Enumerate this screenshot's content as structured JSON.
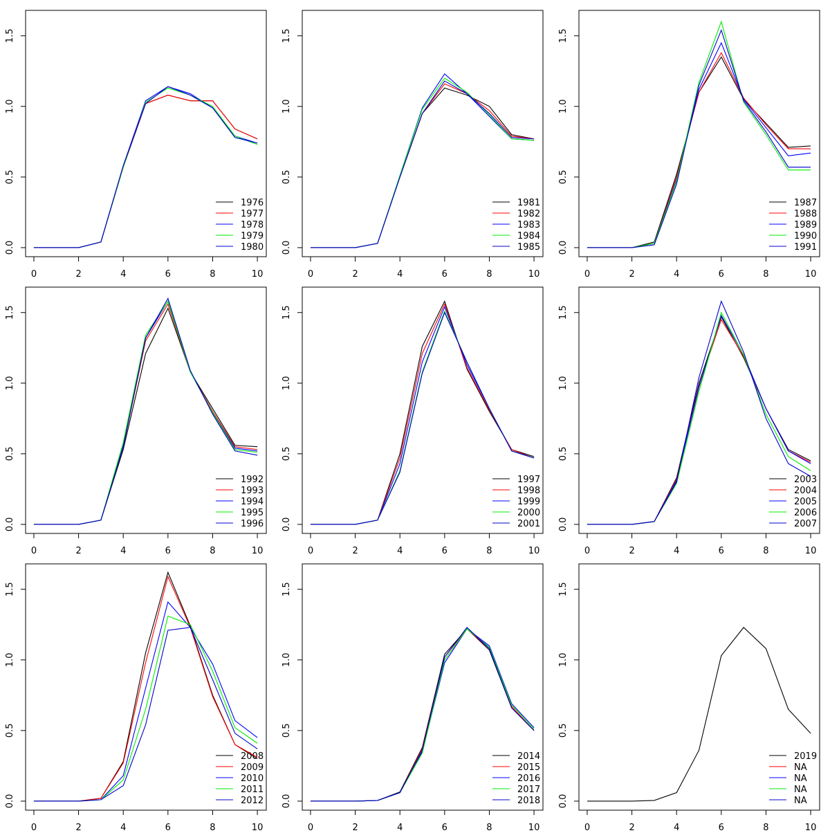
{
  "chart_data": [
    {
      "type": "line",
      "x": [
        0,
        2,
        3,
        4,
        5,
        6,
        7,
        8,
        9,
        10
      ],
      "xlim": [
        -0.37,
        10.4
      ],
      "ylim": [
        -0.064,
        1.68
      ],
      "xticks": [
        0,
        2,
        4,
        6,
        8,
        10
      ],
      "yticks": [
        {
          "value": 0,
          "label": "0.0"
        },
        0.5,
        {
          "value": 1,
          "label": "1.0"
        },
        1.5
      ],
      "series": [
        {
          "name": "1976",
          "color": "#000000",
          "values": [
            0,
            0,
            0.04,
            0.57,
            1.02,
            1.08,
            1.04,
            1.04,
            0.84,
            0.77
          ]
        },
        {
          "name": "1977",
          "color": "#ff0000",
          "values": [
            0,
            0,
            0.04,
            0.57,
            1.02,
            1.08,
            1.04,
            1.04,
            0.84,
            0.77
          ]
        },
        {
          "name": "1978",
          "color": "#0000ff",
          "values": [
            0,
            0,
            0.04,
            0.58,
            1.04,
            1.14,
            1.09,
            0.99,
            0.79,
            0.74
          ]
        },
        {
          "name": "1979",
          "color": "#00ee00",
          "values": [
            0,
            0,
            0.04,
            0.57,
            1.03,
            1.13,
            1.08,
            1.0,
            0.79,
            0.73
          ]
        },
        {
          "name": "1980",
          "color": "#0000cd",
          "values": [
            0,
            0,
            0.04,
            0.58,
            1.02,
            1.14,
            1.08,
            0.99,
            0.78,
            0.74
          ]
        }
      ]
    },
    {
      "type": "line",
      "x": [
        0,
        2,
        3,
        4,
        5,
        6,
        7,
        8,
        9,
        10
      ],
      "xlim": [
        -0.37,
        10.4
      ],
      "ylim": [
        -0.064,
        1.68
      ],
      "xticks": [
        0,
        2,
        4,
        6,
        8,
        10
      ],
      "yticks": [
        {
          "value": 0,
          "label": "0.0"
        },
        0.5,
        {
          "value": 1,
          "label": "1.0"
        },
        1.5
      ],
      "series": [
        {
          "name": "1981",
          "color": "#000000",
          "values": [
            0,
            0,
            0.03,
            0.5,
            0.95,
            1.13,
            1.08,
            1.0,
            0.8,
            0.77
          ]
        },
        {
          "name": "1982",
          "color": "#ff0000",
          "values": [
            0,
            0,
            0.03,
            0.5,
            0.95,
            1.16,
            1.09,
            0.97,
            0.79,
            0.77
          ]
        },
        {
          "name": "1983",
          "color": "#0000ff",
          "values": [
            0,
            0,
            0.03,
            0.51,
            0.99,
            1.23,
            1.09,
            0.93,
            0.77,
            0.76
          ]
        },
        {
          "name": "1984",
          "color": "#00ee00",
          "values": [
            0,
            0,
            0.03,
            0.51,
            0.98,
            1.2,
            1.1,
            0.94,
            0.77,
            0.76
          ]
        },
        {
          "name": "1985",
          "color": "#0000cd",
          "values": [
            0,
            0,
            0.03,
            0.5,
            0.95,
            1.18,
            1.09,
            0.95,
            0.78,
            0.77
          ]
        }
      ]
    },
    {
      "type": "line",
      "x": [
        0,
        2,
        3,
        4,
        5,
        6,
        7,
        8,
        9,
        10
      ],
      "xlim": [
        -0.37,
        10.4
      ],
      "ylim": [
        -0.064,
        1.68
      ],
      "xticks": [
        0,
        2,
        4,
        6,
        8,
        10
      ],
      "yticks": [
        {
          "value": 0,
          "label": "0.0"
        },
        0.5,
        {
          "value": 1,
          "label": "1.0"
        },
        1.5
      ],
      "series": [
        {
          "name": "1987",
          "color": "#000000",
          "values": [
            0,
            0,
            0.04,
            0.52,
            1.1,
            1.35,
            1.05,
            0.88,
            0.71,
            0.72
          ]
        },
        {
          "name": "1988",
          "color": "#ff0000",
          "values": [
            0,
            0,
            0.03,
            0.5,
            1.1,
            1.38,
            1.06,
            0.87,
            0.7,
            0.7
          ]
        },
        {
          "name": "1989",
          "color": "#0000ff",
          "values": [
            0,
            0,
            0.03,
            0.48,
            1.12,
            1.45,
            1.05,
            0.85,
            0.65,
            0.67
          ]
        },
        {
          "name": "1990",
          "color": "#00ee00",
          "values": [
            0,
            0,
            0.03,
            0.47,
            1.17,
            1.6,
            1.03,
            0.8,
            0.55,
            0.55
          ]
        },
        {
          "name": "1991",
          "color": "#0000cd",
          "values": [
            0,
            0,
            0.02,
            0.45,
            1.15,
            1.54,
            1.04,
            0.82,
            0.57,
            0.57
          ]
        }
      ]
    },
    {
      "type": "line",
      "x": [
        0,
        2,
        3,
        4,
        5,
        6,
        7,
        8,
        9,
        10
      ],
      "xlim": [
        -0.37,
        10.4
      ],
      "ylim": [
        -0.064,
        1.68
      ],
      "xticks": [
        0,
        2,
        4,
        6,
        8,
        10
      ],
      "yticks": [
        {
          "value": 0,
          "label": "0.0"
        },
        0.5,
        {
          "value": 1,
          "label": "1.0"
        },
        1.5
      ],
      "series": [
        {
          "name": "1992",
          "color": "#000000",
          "values": [
            0,
            0,
            0.03,
            0.53,
            1.21,
            1.53,
            1.08,
            0.82,
            0.56,
            0.55
          ]
        },
        {
          "name": "1993",
          "color": "#ff0000",
          "values": [
            0,
            0,
            0.03,
            0.55,
            1.3,
            1.56,
            1.08,
            0.8,
            0.55,
            0.53
          ]
        },
        {
          "name": "1994",
          "color": "#0000ff",
          "values": [
            0,
            0,
            0.03,
            0.56,
            1.32,
            1.58,
            1.08,
            0.79,
            0.54,
            0.52
          ]
        },
        {
          "name": "1995",
          "color": "#00ee00",
          "values": [
            0,
            0,
            0.03,
            0.58,
            1.34,
            1.58,
            1.08,
            0.79,
            0.53,
            0.51
          ]
        },
        {
          "name": "1996",
          "color": "#0000cd",
          "values": [
            0,
            0,
            0.03,
            0.55,
            1.32,
            1.6,
            1.09,
            0.78,
            0.52,
            0.49
          ]
        }
      ]
    },
    {
      "type": "line",
      "x": [
        0,
        2,
        3,
        4,
        5,
        6,
        7,
        8,
        9,
        10
      ],
      "xlim": [
        -0.37,
        10.4
      ],
      "ylim": [
        -0.064,
        1.68
      ],
      "xticks": [
        0,
        2,
        4,
        6,
        8,
        10
      ],
      "yticks": [
        {
          "value": 0,
          "label": "0.0"
        },
        0.5,
        {
          "value": 1,
          "label": "1.0"
        },
        1.5
      ],
      "series": [
        {
          "name": "1997",
          "color": "#000000",
          "values": [
            0,
            0,
            0.03,
            0.5,
            1.26,
            1.58,
            1.1,
            0.8,
            0.53,
            0.48
          ]
        },
        {
          "name": "1998",
          "color": "#ff0000",
          "values": [
            0,
            0,
            0.03,
            0.47,
            1.21,
            1.56,
            1.11,
            0.81,
            0.53,
            0.47
          ]
        },
        {
          "name": "1999",
          "color": "#0000ff",
          "values": [
            0,
            0,
            0.03,
            0.43,
            1.15,
            1.54,
            1.13,
            0.82,
            0.52,
            0.47
          ]
        },
        {
          "name": "2000",
          "color": "#00ee00",
          "values": [
            0,
            0,
            0.03,
            0.38,
            1.08,
            1.51,
            1.15,
            0.82,
            0.52,
            0.47
          ]
        },
        {
          "name": "2001",
          "color": "#0000cd",
          "values": [
            0,
            0,
            0.03,
            0.37,
            1.07,
            1.5,
            1.15,
            0.82,
            0.52,
            0.47
          ]
        }
      ]
    },
    {
      "type": "line",
      "x": [
        0,
        2,
        3,
        4,
        5,
        6,
        7,
        8,
        9,
        10
      ],
      "xlim": [
        -0.37,
        10.4
      ],
      "ylim": [
        -0.064,
        1.68
      ],
      "xticks": [
        0,
        2,
        4,
        6,
        8,
        10
      ],
      "yticks": [
        {
          "value": 0,
          "label": "0.0"
        },
        0.5,
        {
          "value": 1,
          "label": "1.0"
        },
        1.5
      ],
      "series": [
        {
          "name": "2003",
          "color": "#000000",
          "values": [
            0,
            0,
            0.02,
            0.33,
            1.0,
            1.47,
            1.18,
            0.82,
            0.53,
            0.45
          ]
        },
        {
          "name": "2004",
          "color": "#ff0000",
          "values": [
            0,
            0,
            0.02,
            0.32,
            0.98,
            1.45,
            1.19,
            0.82,
            0.52,
            0.44
          ]
        },
        {
          "name": "2005",
          "color": "#0000ff",
          "values": [
            0,
            0,
            0.02,
            0.31,
            0.97,
            1.48,
            1.2,
            0.82,
            0.52,
            0.43
          ]
        },
        {
          "name": "2006",
          "color": "#00ee00",
          "values": [
            0,
            0,
            0.02,
            0.29,
            0.94,
            1.5,
            1.2,
            0.78,
            0.48,
            0.38
          ]
        },
        {
          "name": "2007",
          "color": "#0000cd",
          "values": [
            0,
            0,
            0.02,
            0.3,
            1.04,
            1.58,
            1.22,
            0.75,
            0.43,
            0.34
          ]
        }
      ]
    },
    {
      "type": "line",
      "x": [
        0,
        2,
        3,
        4,
        5,
        6,
        7,
        8,
        9,
        10
      ],
      "xlim": [
        -0.37,
        10.4
      ],
      "ylim": [
        -0.064,
        1.68
      ],
      "xticks": [
        0,
        2,
        4,
        6,
        8,
        10
      ],
      "yticks": [
        {
          "value": 0,
          "label": "0.0"
        },
        0.5,
        {
          "value": 1,
          "label": "1.0"
        },
        1.5
      ],
      "series": [
        {
          "name": "2008",
          "color": "#000000",
          "values": [
            0,
            0,
            0.02,
            0.28,
            1.05,
            1.62,
            1.24,
            0.75,
            0.4,
            0.3
          ]
        },
        {
          "name": "2009",
          "color": "#ff0000",
          "values": [
            0,
            0,
            0.02,
            0.27,
            0.98,
            1.59,
            1.23,
            0.74,
            0.4,
            0.31
          ]
        },
        {
          "name": "2010",
          "color": "#0000ff",
          "values": [
            0,
            0,
            0.01,
            0.18,
            0.8,
            1.41,
            1.23,
            0.97,
            0.57,
            0.45
          ]
        },
        {
          "name": "2011",
          "color": "#00ee00",
          "values": [
            0,
            0,
            0.01,
            0.15,
            0.65,
            1.31,
            1.25,
            0.92,
            0.52,
            0.41
          ]
        },
        {
          "name": "2012",
          "color": "#0000cd",
          "values": [
            0,
            0,
            0.01,
            0.11,
            0.54,
            1.21,
            1.23,
            0.86,
            0.48,
            0.37
          ]
        }
      ]
    },
    {
      "type": "line",
      "x": [
        0,
        2,
        3,
        4,
        5,
        6,
        7,
        8,
        9,
        10
      ],
      "xlim": [
        -0.37,
        10.4
      ],
      "ylim": [
        -0.064,
        1.68
      ],
      "xticks": [
        0,
        2,
        4,
        6,
        8,
        10
      ],
      "yticks": [
        {
          "value": 0,
          "label": "0.0"
        },
        0.5,
        {
          "value": 1,
          "label": "1.0"
        },
        1.5
      ],
      "series": [
        {
          "name": "2014",
          "color": "#000000",
          "values": [
            0,
            0,
            0.005,
            0.065,
            0.38,
            1.04,
            1.22,
            1.07,
            0.66,
            0.5
          ]
        },
        {
          "name": "2015",
          "color": "#ff0000",
          "values": [
            0,
            0,
            0.005,
            0.06,
            0.37,
            1.02,
            1.22,
            1.08,
            0.67,
            0.5
          ]
        },
        {
          "name": "2016",
          "color": "#0000ff",
          "values": [
            0,
            0,
            0.005,
            0.06,
            0.35,
            0.98,
            1.22,
            1.1,
            0.69,
            0.52
          ]
        },
        {
          "name": "2017",
          "color": "#00ee00",
          "values": [
            0,
            0,
            0.005,
            0.06,
            0.34,
            1.0,
            1.22,
            1.09,
            0.68,
            0.51
          ]
        },
        {
          "name": "2018",
          "color": "#0000cd",
          "values": [
            0,
            0,
            0.005,
            0.06,
            0.36,
            1.02,
            1.23,
            1.08,
            0.66,
            0.5
          ]
        }
      ]
    },
    {
      "type": "line",
      "x": [
        0,
        2,
        3,
        4,
        5,
        6,
        7,
        8,
        9,
        10
      ],
      "xlim": [
        -0.37,
        10.4
      ],
      "ylim": [
        -0.064,
        1.68
      ],
      "xticks": [
        0,
        2,
        4,
        6,
        8,
        10
      ],
      "yticks": [
        {
          "value": 0,
          "label": "0.0"
        },
        0.5,
        {
          "value": 1,
          "label": "1.0"
        },
        1.5
      ],
      "series": [
        {
          "name": "2019",
          "color": "#000000",
          "values": [
            0,
            0,
            0.005,
            0.06,
            0.36,
            1.03,
            1.23,
            1.08,
            0.65,
            0.48
          ]
        },
        {
          "name": "NA",
          "color": "#ff0000",
          "values": [
            null,
            null,
            null,
            null,
            null,
            null,
            null,
            null,
            null,
            null
          ]
        },
        {
          "name": "NA",
          "color": "#0000ff",
          "values": [
            null,
            null,
            null,
            null,
            null,
            null,
            null,
            null,
            null,
            null
          ]
        },
        {
          "name": "NA",
          "color": "#00ee00",
          "values": [
            null,
            null,
            null,
            null,
            null,
            null,
            null,
            null,
            null,
            null
          ]
        },
        {
          "name": "NA",
          "color": "#0000cd",
          "values": [
            null,
            null,
            null,
            null,
            null,
            null,
            null,
            null,
            null,
            null
          ]
        }
      ]
    }
  ]
}
